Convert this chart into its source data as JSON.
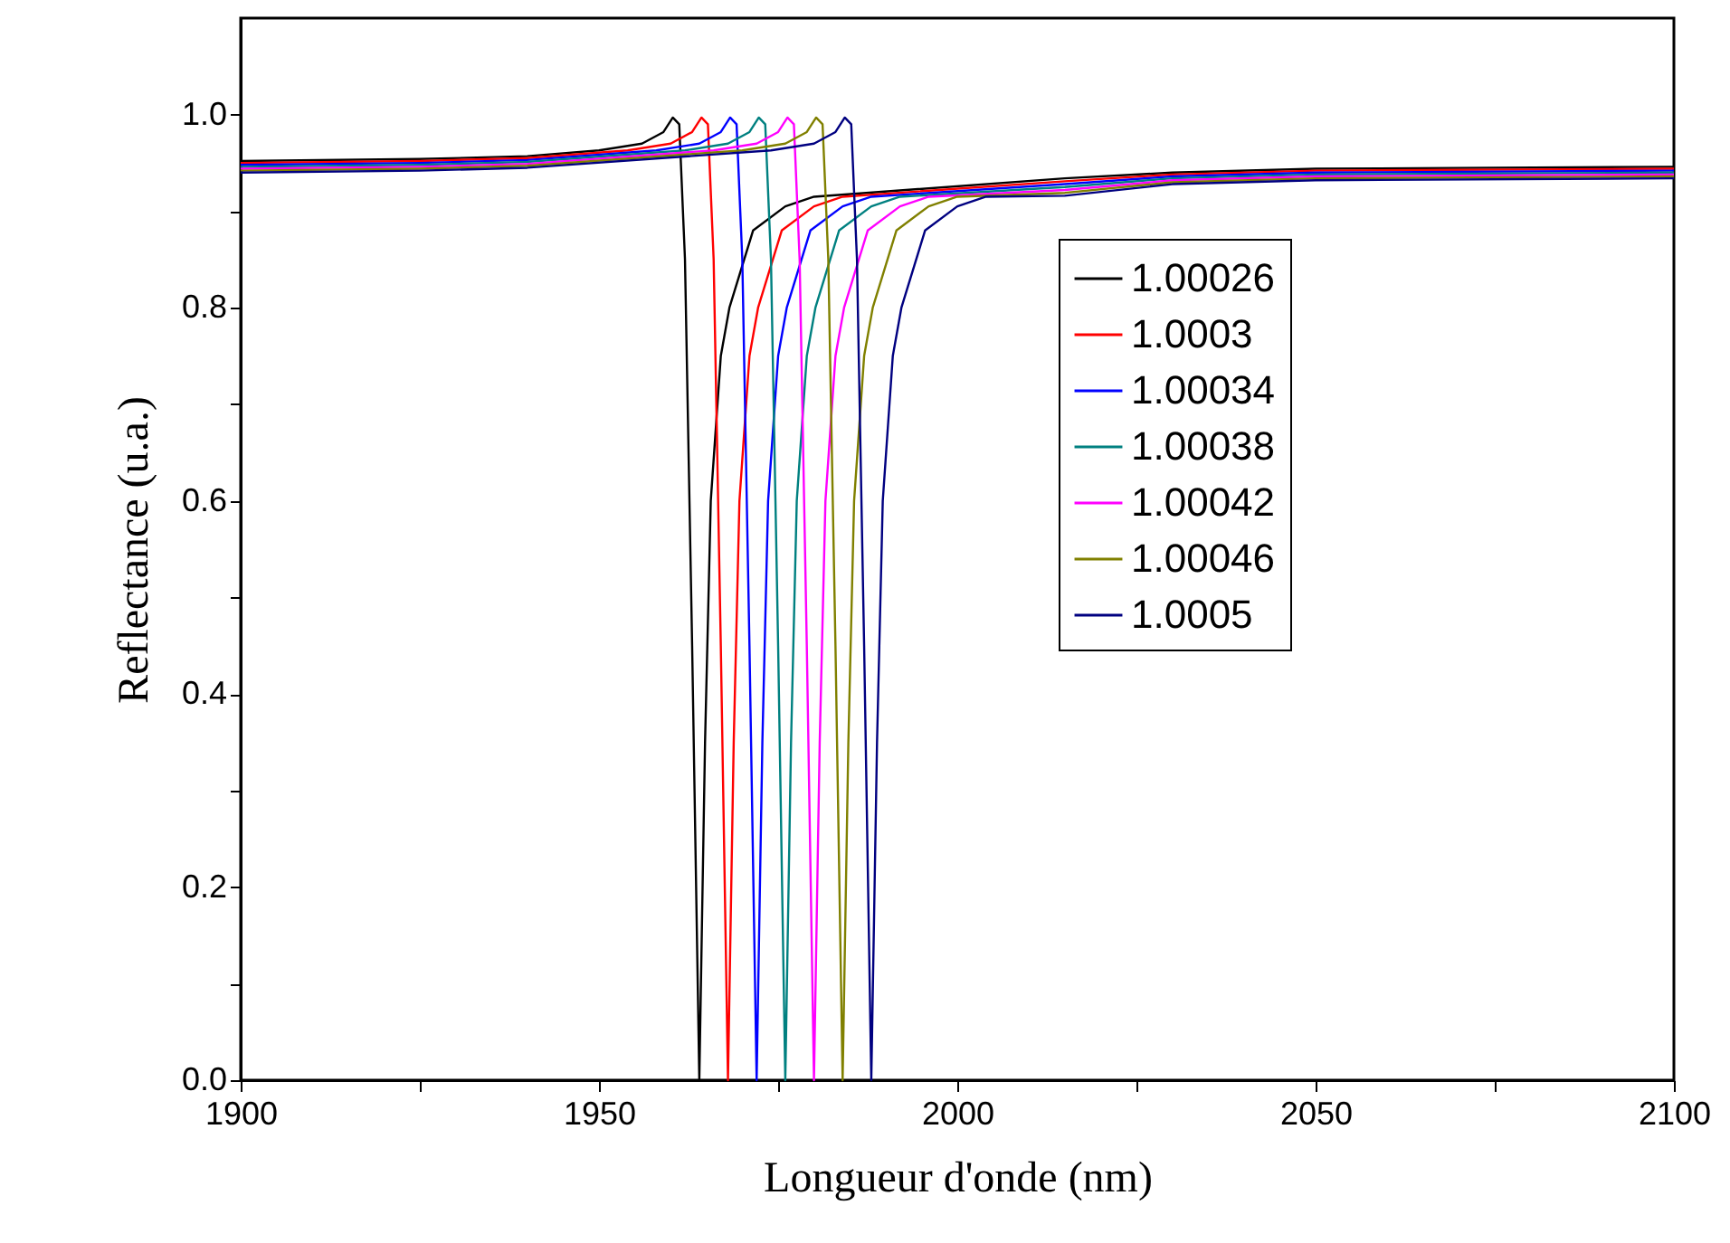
{
  "chart_data": {
    "type": "line",
    "xlabel": "Longueur d'onde (nm)",
    "ylabel": "Reflectance (u.a.)",
    "xlim": [
      1900,
      2100
    ],
    "ylim": [
      0,
      1.1
    ],
    "xticks": [
      1900,
      {
        "value": 1925,
        "label": null
      },
      1950,
      {
        "value": 1975,
        "label": null
      },
      2000,
      {
        "value": 2025,
        "label": null
      },
      2050,
      {
        "value": 2075,
        "label": null
      },
      2100
    ],
    "yticks": [
      {
        "value": 0,
        "label": "0.0"
      },
      {
        "value": 0.1,
        "label": null
      },
      0.2,
      {
        "value": 0.3,
        "label": null
      },
      0.4,
      {
        "value": 0.5,
        "label": null
      },
      0.6,
      {
        "value": 0.7,
        "label": null
      },
      0.8,
      {
        "value": 0.9,
        "label": null
      },
      {
        "value": 1.0,
        "label": "1.0"
      }
    ],
    "grid": false,
    "legend": "right",
    "line_style": "solid",
    "marker": "none",
    "series": [
      {
        "name": "1.00026",
        "color": "#000000",
        "x": [
          1900,
          1925,
          1940,
          1950,
          1956,
          1959,
          1960.3,
          1961.2,
          1962,
          1963,
          1964,
          1964.8,
          1965.6,
          1967,
          1968.2,
          1971.5,
          1976,
          1980,
          2015,
          2030,
          2050,
          2100
        ],
        "values": [
          0.952,
          0.954,
          0.957,
          0.963,
          0.97,
          0.982,
          0.997,
          0.99,
          0.85,
          0.45,
          0.0,
          0.35,
          0.6,
          0.75,
          0.8,
          0.88,
          0.905,
          0.915,
          0.934,
          0.94,
          0.944,
          0.946
        ]
      },
      {
        "name": "1.0003",
        "color": "#ff0000",
        "x": [
          1900,
          1925,
          1940,
          1954,
          1960,
          1963,
          1964.3,
          1965.2,
          1966,
          1967,
          1968,
          1968.8,
          1969.6,
          1971,
          1972.2,
          1975.5,
          1980,
          1984,
          2015,
          2030,
          2050,
          2100
        ],
        "values": [
          0.95,
          0.952,
          0.955,
          0.963,
          0.97,
          0.982,
          0.997,
          0.99,
          0.85,
          0.45,
          0.0,
          0.35,
          0.6,
          0.75,
          0.8,
          0.88,
          0.905,
          0.915,
          0.931,
          0.938,
          0.942,
          0.944
        ]
      },
      {
        "name": "1.00034",
        "color": "#0000ff",
        "x": [
          1900,
          1925,
          1940,
          1958,
          1964,
          1967,
          1968.3,
          1969.2,
          1970,
          1971,
          1972,
          1972.8,
          1973.6,
          1975,
          1976.2,
          1979.5,
          1984,
          1988,
          2015,
          2030,
          2050,
          2100
        ],
        "values": [
          0.948,
          0.95,
          0.953,
          0.963,
          0.97,
          0.982,
          0.997,
          0.99,
          0.85,
          0.45,
          0.0,
          0.35,
          0.6,
          0.75,
          0.8,
          0.88,
          0.905,
          0.915,
          0.928,
          0.936,
          0.94,
          0.942
        ]
      },
      {
        "name": "1.00038",
        "color": "#008080",
        "x": [
          1900,
          1925,
          1940,
          1962,
          1968,
          1971,
          1972.3,
          1973.2,
          1974,
          1975,
          1976,
          1976.8,
          1977.6,
          1979,
          1980.2,
          1983.5,
          1988,
          1992,
          2015,
          2030,
          2050,
          2100
        ],
        "values": [
          0.946,
          0.948,
          0.951,
          0.963,
          0.97,
          0.982,
          0.997,
          0.99,
          0.85,
          0.45,
          0.0,
          0.35,
          0.6,
          0.75,
          0.8,
          0.88,
          0.905,
          0.915,
          0.925,
          0.934,
          0.938,
          0.94
        ]
      },
      {
        "name": "1.00042",
        "color": "#ff00ff",
        "x": [
          1900,
          1925,
          1940,
          1966,
          1972,
          1975,
          1976.3,
          1977.2,
          1978,
          1979,
          1980,
          1980.8,
          1981.6,
          1983,
          1984.2,
          1987.5,
          1992,
          1996,
          2015,
          2030,
          2050,
          2100
        ],
        "values": [
          0.944,
          0.946,
          0.949,
          0.963,
          0.97,
          0.982,
          0.997,
          0.99,
          0.85,
          0.45,
          0.0,
          0.35,
          0.6,
          0.75,
          0.8,
          0.88,
          0.905,
          0.915,
          0.922,
          0.932,
          0.936,
          0.938
        ]
      },
      {
        "name": "1.00046",
        "color": "#808000",
        "x": [
          1900,
          1925,
          1940,
          1970,
          1976,
          1979,
          1980.3,
          1981.2,
          1982,
          1983,
          1984,
          1984.8,
          1985.6,
          1987,
          1988.2,
          1991.5,
          1996,
          2000,
          2015,
          2030,
          2050,
          2100
        ],
        "values": [
          0.942,
          0.944,
          0.947,
          0.963,
          0.97,
          0.982,
          0.997,
          0.99,
          0.85,
          0.45,
          0.0,
          0.35,
          0.6,
          0.75,
          0.8,
          0.88,
          0.905,
          0.915,
          0.919,
          0.93,
          0.934,
          0.936
        ]
      },
      {
        "name": "1.0005",
        "color": "#000080",
        "x": [
          1900,
          1925,
          1940,
          1974,
          1980,
          1983,
          1984.3,
          1985.2,
          1986,
          1987,
          1988,
          1988.8,
          1989.6,
          1991,
          1992.2,
          1995.5,
          2000,
          2004,
          2015,
          2030,
          2050,
          2100
        ],
        "values": [
          0.94,
          0.942,
          0.945,
          0.963,
          0.97,
          0.982,
          0.997,
          0.99,
          0.85,
          0.45,
          0.0,
          0.35,
          0.6,
          0.75,
          0.8,
          0.88,
          0.905,
          0.915,
          0.916,
          0.928,
          0.932,
          0.934
        ]
      }
    ]
  }
}
